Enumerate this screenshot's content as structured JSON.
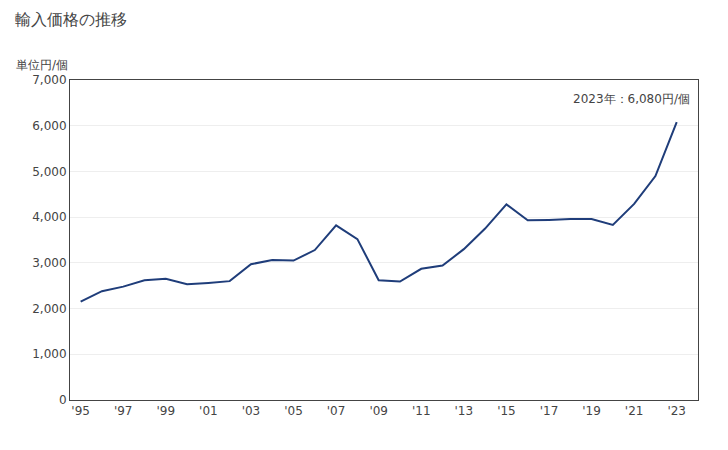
{
  "chart_data": {
    "type": "line",
    "title": "輸入価格の推移",
    "ylabel": "単位円/個",
    "annotation": "2023年：6,080円/個",
    "x": [
      1995,
      1996,
      1997,
      1998,
      1999,
      2000,
      2001,
      2002,
      2003,
      2004,
      2005,
      2006,
      2007,
      2008,
      2009,
      2010,
      2011,
      2012,
      2013,
      2014,
      2015,
      2016,
      2017,
      2018,
      2019,
      2020,
      2021,
      2022,
      2023
    ],
    "values": [
      2150,
      2380,
      2480,
      2620,
      2650,
      2530,
      2560,
      2600,
      2970,
      3060,
      3050,
      3280,
      3820,
      3520,
      2620,
      2590,
      2870,
      2940,
      3300,
      3750,
      4280,
      3930,
      3940,
      3960,
      3960,
      3830,
      4290,
      4900,
      6080
    ],
    "color": "#1f3d7a",
    "xlim": [
      1994.5,
      2024.0
    ],
    "xticks": [
      {
        "value": 1995,
        "label": "'95"
      },
      {
        "value": 1997,
        "label": "'97"
      },
      {
        "value": 1999,
        "label": "'99"
      },
      {
        "value": 2001,
        "label": "'01"
      },
      {
        "value": 2003,
        "label": "'03"
      },
      {
        "value": 2005,
        "label": "'05"
      },
      {
        "value": 2007,
        "label": "'07"
      },
      {
        "value": 2009,
        "label": "'09"
      },
      {
        "value": 2011,
        "label": "'11"
      },
      {
        "value": 2013,
        "label": "'13"
      },
      {
        "value": 2015,
        "label": "'15"
      },
      {
        "value": 2017,
        "label": "'17"
      },
      {
        "value": 2019,
        "label": "'19"
      },
      {
        "value": 2021,
        "label": "'21"
      },
      {
        "value": 2023,
        "label": "'23"
      }
    ],
    "ylim": [
      0,
      7000
    ],
    "yticks": [
      0,
      {
        "value": 1000,
        "label": "1,000"
      },
      {
        "value": 2000,
        "label": "2,000"
      },
      {
        "value": 3000,
        "label": "3,000"
      },
      {
        "value": 4000,
        "label": "4,000"
      },
      {
        "value": 5000,
        "label": "5,000"
      },
      {
        "value": 6000,
        "label": "6,000"
      },
      {
        "value": 7000,
        "label": "7,000"
      }
    ],
    "grid": "y"
  }
}
